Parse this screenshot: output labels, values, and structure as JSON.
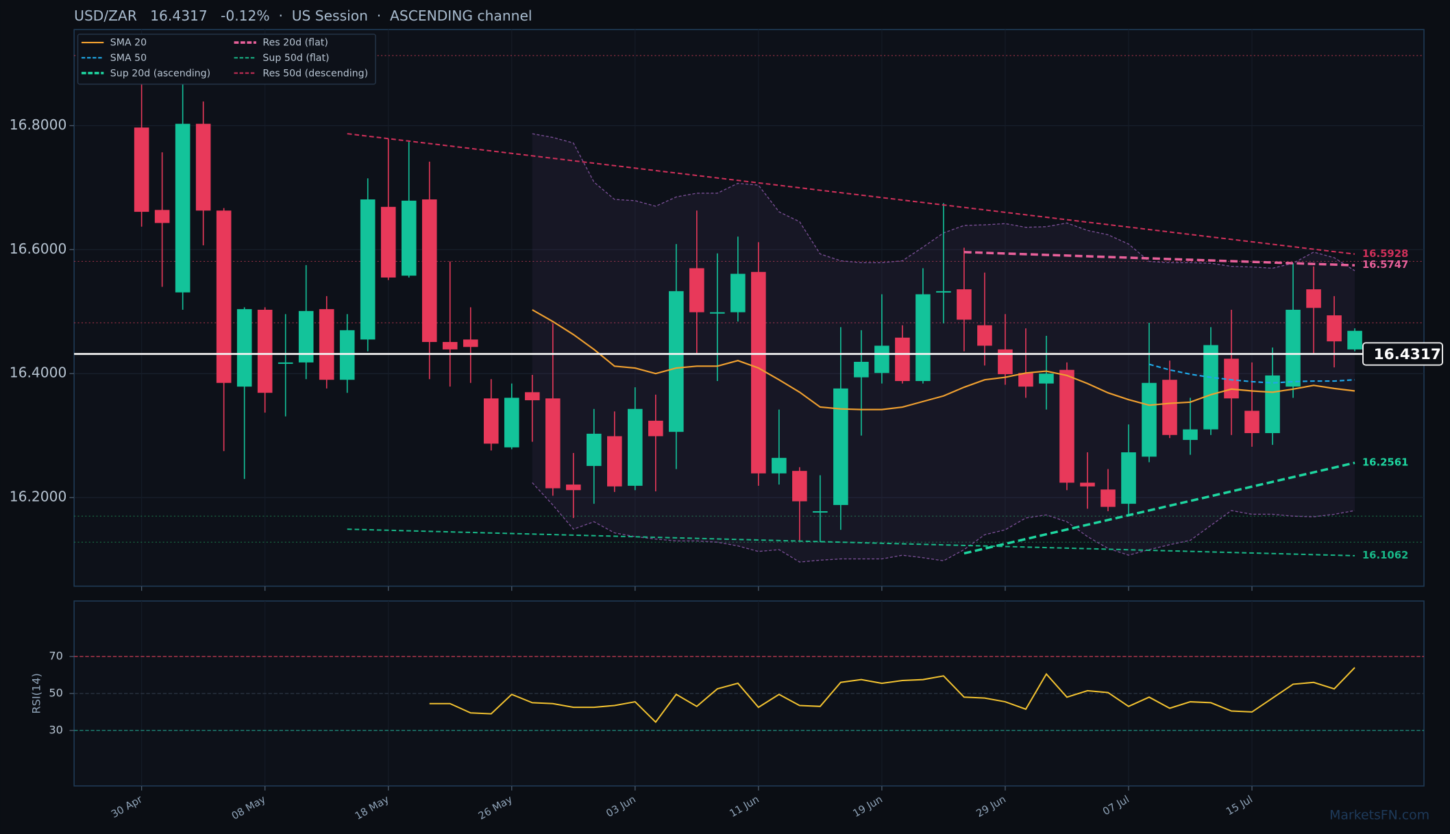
{
  "chart_data": [
    {
      "type": "candlestick",
      "title": "USD/ZAR   16.4317   -0.12%  ·  US Session  ·  ASCENDING channel",
      "categories": [
        "30 Apr",
        null,
        null,
        null,
        null,
        null,
        "08 May",
        null,
        null,
        null,
        null,
        null,
        "18 May",
        null,
        null,
        null,
        null,
        null,
        "26 May",
        null,
        null,
        null,
        null,
        null,
        "03 Jun",
        null,
        null,
        null,
        null,
        null,
        "11 Jun",
        null,
        null,
        null,
        null,
        null,
        "19 Jun",
        null,
        null,
        null,
        null,
        null,
        "29 Jun",
        null,
        null,
        null,
        null,
        null,
        "07 Jul",
        null,
        null,
        null,
        null,
        null,
        "15 Jul",
        null,
        null,
        null,
        null,
        null
      ],
      "open": [
        16.797,
        16.664,
        16.531,
        16.803,
        16.663,
        16.379,
        16.503,
        16.416,
        16.418,
        16.504,
        16.39,
        16.455,
        16.669,
        16.558,
        16.681,
        16.451,
        16.455,
        16.36,
        16.281,
        16.37,
        16.36,
        16.221,
        16.251,
        16.299,
        16.219,
        16.324,
        16.306,
        16.57,
        16.498,
        16.499,
        16.564,
        16.239,
        16.243,
        16.177,
        16.188,
        16.394,
        16.401,
        16.458,
        16.388,
        16.531,
        16.536,
        16.478,
        16.439,
        16.401,
        16.384,
        16.406,
        16.224,
        16.213,
        16.19,
        16.266,
        16.39,
        16.293,
        16.31,
        16.424,
        16.34,
        16.304,
        16.379,
        16.536,
        16.494,
        16.439
      ],
      "high": [
        16.869,
        16.757,
        16.869,
        16.839,
        16.667,
        16.507,
        16.507,
        16.496,
        16.575,
        16.525,
        16.496,
        16.715,
        16.779,
        16.774,
        16.742,
        16.581,
        16.507,
        16.391,
        16.384,
        16.398,
        16.481,
        16.272,
        16.343,
        16.339,
        16.378,
        16.366,
        16.609,
        16.663,
        16.594,
        16.621,
        16.612,
        16.342,
        16.249,
        16.236,
        16.475,
        16.47,
        16.528,
        16.478,
        16.57,
        16.675,
        16.603,
        16.563,
        16.496,
        16.473,
        16.461,
        16.418,
        16.273,
        16.246,
        16.318,
        16.482,
        16.421,
        16.361,
        16.475,
        16.503,
        16.418,
        16.442,
        16.578,
        16.573,
        16.525,
        16.473
      ],
      "low": [
        16.637,
        16.54,
        16.503,
        16.607,
        16.275,
        16.23,
        16.337,
        16.331,
        16.391,
        16.376,
        16.369,
        16.436,
        16.551,
        16.555,
        16.391,
        16.379,
        16.385,
        16.276,
        16.278,
        16.29,
        16.203,
        16.167,
        16.19,
        16.209,
        16.212,
        16.21,
        16.246,
        16.433,
        16.388,
        16.484,
        16.219,
        16.221,
        16.13,
        16.128,
        16.148,
        16.3,
        16.384,
        16.384,
        16.384,
        16.481,
        16.436,
        16.413,
        16.382,
        16.361,
        16.342,
        16.212,
        16.182,
        16.178,
        16.17,
        16.257,
        16.296,
        16.269,
        16.301,
        16.301,
        16.282,
        16.285,
        16.361,
        16.431,
        16.41,
        16.436
      ],
      "close": [
        16.661,
        16.643,
        16.803,
        16.663,
        16.385,
        16.504,
        16.369,
        16.418,
        16.501,
        16.39,
        16.47,
        16.681,
        16.555,
        16.679,
        16.451,
        16.439,
        16.443,
        16.287,
        16.361,
        16.357,
        16.215,
        16.212,
        16.303,
        16.218,
        16.343,
        16.299,
        16.533,
        16.499,
        16.499,
        16.561,
        16.239,
        16.264,
        16.194,
        16.178,
        16.376,
        16.419,
        16.445,
        16.388,
        16.528,
        16.533,
        16.487,
        16.445,
        16.399,
        16.379,
        16.4,
        16.224,
        16.218,
        16.185,
        16.273,
        16.385,
        16.301,
        16.31,
        16.446,
        16.36,
        16.304,
        16.397,
        16.503,
        16.506,
        16.452,
        16.469
      ],
      "up_color": "#13c39a",
      "down_color": "#e8395a",
      "last_price": 16.4317,
      "ylim": [
        16.057,
        16.955
      ],
      "yticks": [
        {
          "value": 16.8,
          "label": "16.8000"
        },
        {
          "value": 16.6,
          "label": "16.6000"
        },
        {
          "value": 16.4,
          "label": "16.4000"
        },
        {
          "value": 16.2,
          "label": "16.2000"
        }
      ],
      "grid": true,
      "legend": "upper left",
      "band": {
        "color": "#7a4f96",
        "upper": [
          16.787,
          16.781,
          16.772,
          16.709,
          16.681,
          16.679,
          16.67,
          16.685,
          16.691,
          16.691,
          16.707,
          16.704,
          16.661,
          16.645,
          16.593,
          16.582,
          16.579,
          16.579,
          16.582,
          16.604,
          16.627,
          16.639,
          16.64,
          16.642,
          16.636,
          16.637,
          16.643,
          16.631,
          16.624,
          16.609,
          16.581,
          16.579,
          16.579,
          16.578,
          16.573,
          16.572,
          16.57,
          16.578,
          16.596,
          16.587,
          16.566
        ],
        "lower": [
          16.224,
          16.188,
          16.149,
          16.161,
          16.143,
          16.137,
          16.133,
          16.13,
          16.13,
          16.128,
          16.122,
          16.113,
          16.116,
          16.096,
          16.099,
          16.101,
          16.101,
          16.101,
          16.107,
          16.103,
          16.098,
          16.116,
          16.14,
          16.148,
          16.167,
          16.172,
          16.161,
          16.137,
          16.118,
          16.107,
          16.116,
          16.124,
          16.131,
          16.155,
          16.179,
          16.173,
          16.173,
          16.17,
          16.169,
          16.173,
          16.179
        ]
      },
      "levels": [
        {
          "value": 16.913,
          "color": "#b8394f"
        },
        {
          "value": 16.581,
          "color": "#b8394f"
        },
        {
          "value": 16.482,
          "color": "#b8394f"
        },
        {
          "value": 16.17,
          "color": "#1f8f55"
        },
        {
          "value": 16.128,
          "color": "#1f8f55"
        }
      ],
      "series": [
        {
          "name": "SMA 20",
          "color": "#f0a030",
          "width": 1.6,
          "dash": false,
          "values": [
            null,
            null,
            null,
            null,
            null,
            null,
            null,
            null,
            null,
            null,
            null,
            null,
            null,
            null,
            null,
            null,
            null,
            null,
            null,
            16.503,
            16.484,
            16.463,
            16.439,
            16.412,
            16.409,
            16.4,
            16.409,
            16.412,
            16.412,
            16.421,
            16.409,
            16.39,
            16.37,
            16.346,
            16.343,
            16.342,
            16.342,
            16.346,
            16.355,
            16.364,
            16.378,
            16.39,
            16.394,
            16.401,
            16.404,
            16.397,
            16.384,
            16.369,
            16.358,
            16.349,
            16.352,
            16.354,
            16.366,
            16.375,
            16.372,
            16.37,
            16.375,
            16.381,
            16.376,
            16.372
          ]
        },
        {
          "name": "SMA 50",
          "color": "#1fa8e8",
          "width": 1.6,
          "dash": true,
          "values": [
            null,
            null,
            null,
            null,
            null,
            null,
            null,
            null,
            null,
            null,
            null,
            null,
            null,
            null,
            null,
            null,
            null,
            null,
            null,
            null,
            null,
            null,
            null,
            null,
            null,
            null,
            null,
            null,
            null,
            null,
            null,
            null,
            null,
            null,
            null,
            null,
            null,
            null,
            null,
            null,
            null,
            null,
            null,
            null,
            null,
            null,
            null,
            null,
            null,
            16.415,
            16.406,
            16.399,
            16.394,
            16.39,
            16.387,
            16.385,
            16.387,
            16.388,
            16.388,
            16.39
          ]
        },
        {
          "name": "Sup 20d (ascending)",
          "color": "#1ed6a0",
          "width": 2.6,
          "dash": true,
          "end_label": true,
          "x": [
            40,
            59
          ],
          "values": [
            16.11,
            16.2561
          ]
        },
        {
          "name": "Res 20d (flat)",
          "color": "#e8609a",
          "width": 2.6,
          "dash": true,
          "end_label": true,
          "x": [
            40,
            59
          ],
          "values": [
            16.596,
            16.5747
          ]
        },
        {
          "name": "Sup 50d (flat)",
          "color": "#18b888",
          "width": 1.5,
          "dash": true,
          "end_label": true,
          "x": [
            10,
            59
          ],
          "values": [
            16.149,
            16.1062
          ]
        },
        {
          "name": "Res 50d (descending)",
          "color": "#d0305a",
          "width": 1.5,
          "dash": true,
          "end_label": true,
          "x": [
            10,
            59
          ],
          "values": [
            16.787,
            16.5928
          ]
        }
      ]
    },
    {
      "type": "line",
      "ylabel": "RSI(14)",
      "color": "#f2c230",
      "ylim": [
        0,
        100
      ],
      "yticks": [
        30,
        50,
        70
      ],
      "ref_lines": [
        {
          "value": 70,
          "color": "#b8394f"
        },
        {
          "value": 50,
          "color": "#2a3340"
        },
        {
          "value": 30,
          "color": "#1f8f80"
        }
      ],
      "values": [
        null,
        null,
        null,
        null,
        null,
        null,
        null,
        null,
        null,
        null,
        null,
        null,
        null,
        null,
        44.5,
        44.5,
        39.5,
        39,
        49.5,
        45,
        44.5,
        42.5,
        42.5,
        43.5,
        45.5,
        34.5,
        49.5,
        43,
        52.5,
        55.5,
        42.5,
        49.5,
        43.5,
        43,
        56,
        57.5,
        55.5,
        57,
        57.5,
        59.5,
        48,
        47.5,
        45.5,
        41.5,
        60.5,
        48,
        51.5,
        50.5,
        43,
        48,
        42,
        45.5,
        45,
        40.5,
        40,
        47.5,
        55,
        56,
        52.5,
        64
      ]
    },
    {
      "type": "watermark",
      "text": "MarketsFN.com"
    }
  ]
}
